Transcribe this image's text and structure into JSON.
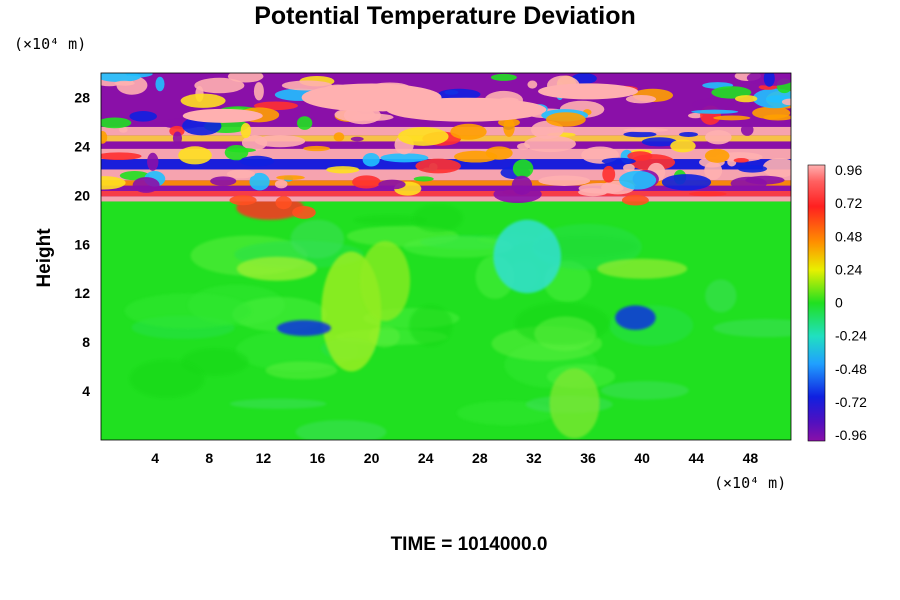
{
  "chart_data": {
    "type": "heatmap",
    "title": "Potential Temperature Deviation",
    "ylabel": "Height",
    "xunit": "(×10⁴ m)",
    "yunit": "(×10⁴ m)",
    "xlim": [
      0,
      51
    ],
    "ylim": [
      0,
      30
    ],
    "x_ticks": [
      4,
      8,
      12,
      16,
      20,
      24,
      28,
      32,
      36,
      40,
      44,
      48
    ],
    "y_ticks": [
      4,
      8,
      12,
      16,
      20,
      24,
      28
    ],
    "colorbar": {
      "range": [
        -0.96,
        0.96
      ],
      "labels": [
        "0.96",
        "0.72",
        "0.48",
        "0.24",
        "0",
        "-0.24",
        "-0.48",
        "-0.72",
        "-0.96"
      ]
    },
    "annotation": "TIME = 1014000.0",
    "field_summary": {
      "lower_region_y": [
        0,
        19.5
      ],
      "lower_region_value": 0,
      "upper_region_y": [
        19.5,
        30
      ],
      "upper_region_value_range": [
        -0.96,
        0.96
      ],
      "notable_features": [
        {
          "description": "negative streak",
          "x": [
            13,
            17
          ],
          "y": [
            8.5,
            9.8
          ],
          "value": -0.8
        },
        {
          "description": "negative streak",
          "x": [
            38,
            41
          ],
          "y": [
            9,
            11
          ],
          "value": -0.8
        },
        {
          "description": "slightly negative plume",
          "x": [
            29,
            34
          ],
          "y": [
            12,
            18
          ],
          "value": -0.3
        },
        {
          "description": "warm blobs",
          "x": [
            10,
            15
          ],
          "y": [
            18,
            20
          ],
          "value": 0.7
        }
      ]
    }
  },
  "colors": {
    "max": "#ffb0b0",
    "positive": "#ff2020",
    "zero": "#20e020",
    "negative": "#1020e0",
    "min": "#8a10a8"
  }
}
